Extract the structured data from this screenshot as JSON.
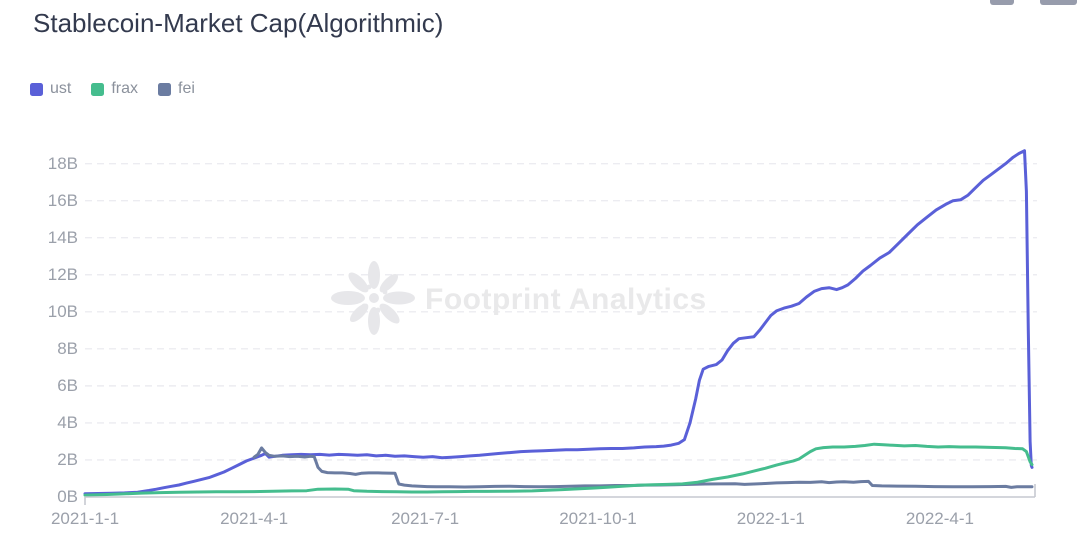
{
  "header": {
    "title": "Stablecoin-Market Cap(Algorithmic)"
  },
  "toolbar": {
    "icons": [
      "clipped-toolbar-icon-left",
      "clipped-toolbar-icon-right"
    ]
  },
  "legend": [
    {
      "label": "ust",
      "color": "#5a60d8"
    },
    {
      "label": "frax",
      "color": "#45bd8e"
    },
    {
      "label": "fei",
      "color": "#6b7ca1"
    }
  ],
  "watermark": {
    "text": "Footprint Analytics"
  },
  "chart_data": {
    "type": "line",
    "title": "Stablecoin-Market Cap(Algorithmic)",
    "unit": "billions USD",
    "grid": "horizontal dashed",
    "legend_position": "top-left",
    "x_axis": {
      "type": "time",
      "start": "2021-1-1",
      "end_day": 504,
      "ticks": [
        {
          "label": "2021-1-1",
          "day": 0
        },
        {
          "label": "2021-4-1",
          "day": 90
        },
        {
          "label": "2021-7-1",
          "day": 181
        },
        {
          "label": "2021-10-1",
          "day": 273
        },
        {
          "label": "2022-1-1",
          "day": 365
        },
        {
          "label": "2022-4-1",
          "day": 455
        }
      ]
    },
    "y_axis": {
      "min": 0,
      "max": 18,
      "step": 2,
      "tick_labels": [
        "0B",
        "2B",
        "4B",
        "6B",
        "8B",
        "10B",
        "12B",
        "14B",
        "16B",
        "18B"
      ]
    },
    "series": [
      {
        "name": "ust",
        "color": "#5a60d8",
        "points": [
          [
            0,
            0.18
          ],
          [
            7,
            0.19
          ],
          [
            14,
            0.2
          ],
          [
            21,
            0.22
          ],
          [
            28,
            0.26
          ],
          [
            34,
            0.35
          ],
          [
            38,
            0.42
          ],
          [
            42,
            0.5
          ],
          [
            46,
            0.58
          ],
          [
            50,
            0.65
          ],
          [
            54,
            0.75
          ],
          [
            58,
            0.85
          ],
          [
            62,
            0.95
          ],
          [
            66,
            1.05
          ],
          [
            70,
            1.2
          ],
          [
            74,
            1.35
          ],
          [
            78,
            1.55
          ],
          [
            82,
            1.75
          ],
          [
            86,
            1.95
          ],
          [
            90,
            2.1
          ],
          [
            94,
            2.25
          ],
          [
            96,
            2.35
          ],
          [
            98,
            2.15
          ],
          [
            101,
            2.2
          ],
          [
            105,
            2.25
          ],
          [
            110,
            2.28
          ],
          [
            115,
            2.3
          ],
          [
            120,
            2.28
          ],
          [
            125,
            2.3
          ],
          [
            130,
            2.26
          ],
          [
            135,
            2.3
          ],
          [
            140,
            2.28
          ],
          [
            145,
            2.25
          ],
          [
            150,
            2.28
          ],
          [
            155,
            2.22
          ],
          [
            160,
            2.25
          ],
          [
            165,
            2.2
          ],
          [
            170,
            2.22
          ],
          [
            175,
            2.18
          ],
          [
            180,
            2.15
          ],
          [
            185,
            2.18
          ],
          [
            190,
            2.12
          ],
          [
            195,
            2.15
          ],
          [
            200,
            2.18
          ],
          [
            205,
            2.22
          ],
          [
            210,
            2.25
          ],
          [
            215,
            2.3
          ],
          [
            220,
            2.35
          ],
          [
            226,
            2.4
          ],
          [
            232,
            2.45
          ],
          [
            238,
            2.48
          ],
          [
            244,
            2.5
          ],
          [
            250,
            2.52
          ],
          [
            256,
            2.55
          ],
          [
            262,
            2.55
          ],
          [
            268,
            2.58
          ],
          [
            274,
            2.6
          ],
          [
            280,
            2.62
          ],
          [
            286,
            2.62
          ],
          [
            292,
            2.65
          ],
          [
            298,
            2.7
          ],
          [
            304,
            2.72
          ],
          [
            308,
            2.75
          ],
          [
            312,
            2.8
          ],
          [
            316,
            2.9
          ],
          [
            319,
            3.1
          ],
          [
            322,
            4.0
          ],
          [
            325,
            5.3
          ],
          [
            327,
            6.3
          ],
          [
            329,
            6.9
          ],
          [
            332,
            7.05
          ],
          [
            336,
            7.15
          ],
          [
            339,
            7.4
          ],
          [
            342,
            7.9
          ],
          [
            345,
            8.3
          ],
          [
            348,
            8.55
          ],
          [
            352,
            8.6
          ],
          [
            356,
            8.65
          ],
          [
            359,
            9.0
          ],
          [
            362,
            9.4
          ],
          [
            365,
            9.8
          ],
          [
            368,
            10.05
          ],
          [
            372,
            10.2
          ],
          [
            376,
            10.3
          ],
          [
            380,
            10.45
          ],
          [
            384,
            10.8
          ],
          [
            388,
            11.1
          ],
          [
            392,
            11.25
          ],
          [
            396,
            11.3
          ],
          [
            400,
            11.2
          ],
          [
            403,
            11.3
          ],
          [
            406,
            11.45
          ],
          [
            410,
            11.8
          ],
          [
            414,
            12.2
          ],
          [
            418,
            12.5
          ],
          [
            423,
            12.9
          ],
          [
            428,
            13.2
          ],
          [
            433,
            13.7
          ],
          [
            438,
            14.2
          ],
          [
            443,
            14.7
          ],
          [
            448,
            15.1
          ],
          [
            453,
            15.5
          ],
          [
            458,
            15.8
          ],
          [
            462,
            16.0
          ],
          [
            466,
            16.05
          ],
          [
            470,
            16.3
          ],
          [
            474,
            16.7
          ],
          [
            478,
            17.1
          ],
          [
            482,
            17.4
          ],
          [
            486,
            17.7
          ],
          [
            490,
            18.0
          ],
          [
            494,
            18.35
          ],
          [
            497,
            18.55
          ],
          [
            500,
            18.7
          ],
          [
            501,
            16.5
          ],
          [
            502,
            9.0
          ],
          [
            503,
            3.0
          ],
          [
            503.6,
            1.7
          ],
          [
            504,
            1.6
          ]
        ]
      },
      {
        "name": "frax",
        "color": "#45bd8e",
        "points": [
          [
            0,
            0.1
          ],
          [
            10,
            0.13
          ],
          [
            20,
            0.17
          ],
          [
            30,
            0.21
          ],
          [
            40,
            0.24
          ],
          [
            50,
            0.26
          ],
          [
            60,
            0.27
          ],
          [
            70,
            0.28
          ],
          [
            80,
            0.28
          ],
          [
            90,
            0.29
          ],
          [
            100,
            0.31
          ],
          [
            110,
            0.33
          ],
          [
            118,
            0.34
          ],
          [
            124,
            0.42
          ],
          [
            133,
            0.43
          ],
          [
            140,
            0.42
          ],
          [
            143,
            0.34
          ],
          [
            150,
            0.31
          ],
          [
            158,
            0.29
          ],
          [
            166,
            0.28
          ],
          [
            174,
            0.27
          ],
          [
            182,
            0.27
          ],
          [
            190,
            0.28
          ],
          [
            198,
            0.29
          ],
          [
            206,
            0.3
          ],
          [
            214,
            0.3
          ],
          [
            222,
            0.31
          ],
          [
            230,
            0.32
          ],
          [
            238,
            0.33
          ],
          [
            246,
            0.36
          ],
          [
            254,
            0.4
          ],
          [
            262,
            0.44
          ],
          [
            270,
            0.48
          ],
          [
            278,
            0.53
          ],
          [
            286,
            0.58
          ],
          [
            294,
            0.63
          ],
          [
            302,
            0.66
          ],
          [
            310,
            0.68
          ],
          [
            318,
            0.71
          ],
          [
            326,
            0.8
          ],
          [
            334,
            0.95
          ],
          [
            342,
            1.08
          ],
          [
            350,
            1.25
          ],
          [
            356,
            1.4
          ],
          [
            362,
            1.55
          ],
          [
            368,
            1.72
          ],
          [
            373,
            1.85
          ],
          [
            377,
            1.95
          ],
          [
            380,
            2.05
          ],
          [
            383,
            2.25
          ],
          [
            386,
            2.45
          ],
          [
            389,
            2.6
          ],
          [
            393,
            2.67
          ],
          [
            398,
            2.7
          ],
          [
            404,
            2.7
          ],
          [
            410,
            2.73
          ],
          [
            415,
            2.78
          ],
          [
            420,
            2.85
          ],
          [
            425,
            2.82
          ],
          [
            430,
            2.79
          ],
          [
            436,
            2.76
          ],
          [
            442,
            2.78
          ],
          [
            448,
            2.73
          ],
          [
            454,
            2.7
          ],
          [
            460,
            2.72
          ],
          [
            466,
            2.7
          ],
          [
            474,
            2.7
          ],
          [
            482,
            2.68
          ],
          [
            490,
            2.66
          ],
          [
            495,
            2.62
          ],
          [
            499,
            2.6
          ],
          [
            501,
            2.45
          ],
          [
            503,
            1.9
          ],
          [
            504,
            1.75
          ]
        ]
      },
      {
        "name": "fei",
        "color": "#6b7ca1",
        "points": [
          [
            90,
            2.15
          ],
          [
            92,
            2.3
          ],
          [
            94,
            2.65
          ],
          [
            96,
            2.4
          ],
          [
            98,
            2.25
          ],
          [
            101,
            2.2
          ],
          [
            105,
            2.22
          ],
          [
            109,
            2.18
          ],
          [
            113,
            2.2
          ],
          [
            117,
            2.16
          ],
          [
            120,
            2.2
          ],
          [
            122,
            2.18
          ],
          [
            124,
            1.6
          ],
          [
            126,
            1.38
          ],
          [
            129,
            1.32
          ],
          [
            133,
            1.3
          ],
          [
            137,
            1.3
          ],
          [
            141,
            1.27
          ],
          [
            144,
            1.22
          ],
          [
            147,
            1.28
          ],
          [
            151,
            1.3
          ],
          [
            156,
            1.3
          ],
          [
            161,
            1.29
          ],
          [
            165,
            1.28
          ],
          [
            167,
            0.7
          ],
          [
            170,
            0.64
          ],
          [
            174,
            0.6
          ],
          [
            178,
            0.58
          ],
          [
            182,
            0.56
          ],
          [
            187,
            0.55
          ],
          [
            194,
            0.55
          ],
          [
            202,
            0.54
          ],
          [
            210,
            0.55
          ],
          [
            218,
            0.57
          ],
          [
            226,
            0.58
          ],
          [
            234,
            0.56
          ],
          [
            242,
            0.55
          ],
          [
            250,
            0.56
          ],
          [
            258,
            0.58
          ],
          [
            266,
            0.6
          ],
          [
            274,
            0.6
          ],
          [
            282,
            0.62
          ],
          [
            290,
            0.62
          ],
          [
            298,
            0.64
          ],
          [
            306,
            0.65
          ],
          [
            314,
            0.66
          ],
          [
            322,
            0.68
          ],
          [
            330,
            0.7
          ],
          [
            338,
            0.71
          ],
          [
            346,
            0.72
          ],
          [
            351,
            0.68
          ],
          [
            356,
            0.7
          ],
          [
            362,
            0.73
          ],
          [
            368,
            0.76
          ],
          [
            374,
            0.78
          ],
          [
            380,
            0.8
          ],
          [
            386,
            0.79
          ],
          [
            392,
            0.82
          ],
          [
            396,
            0.78
          ],
          [
            400,
            0.81
          ],
          [
            404,
            0.82
          ],
          [
            409,
            0.8
          ],
          [
            413,
            0.83
          ],
          [
            417,
            0.84
          ],
          [
            419,
            0.62
          ],
          [
            424,
            0.6
          ],
          [
            432,
            0.59
          ],
          [
            442,
            0.58
          ],
          [
            452,
            0.56
          ],
          [
            462,
            0.55
          ],
          [
            472,
            0.55
          ],
          [
            482,
            0.56
          ],
          [
            490,
            0.57
          ],
          [
            493,
            0.52
          ],
          [
            496,
            0.55
          ],
          [
            500,
            0.55
          ],
          [
            504,
            0.55
          ]
        ]
      }
    ],
    "draw_order": [
      0,
      2,
      1
    ],
    "colors": {
      "grid_line": "#ececf1",
      "axis_line": "#c6c9d0",
      "axis_text": "#9ba0aa",
      "title_text": "#333a4e",
      "legend_text": "#8b919c",
      "watermark": "#e9e9ea"
    }
  }
}
